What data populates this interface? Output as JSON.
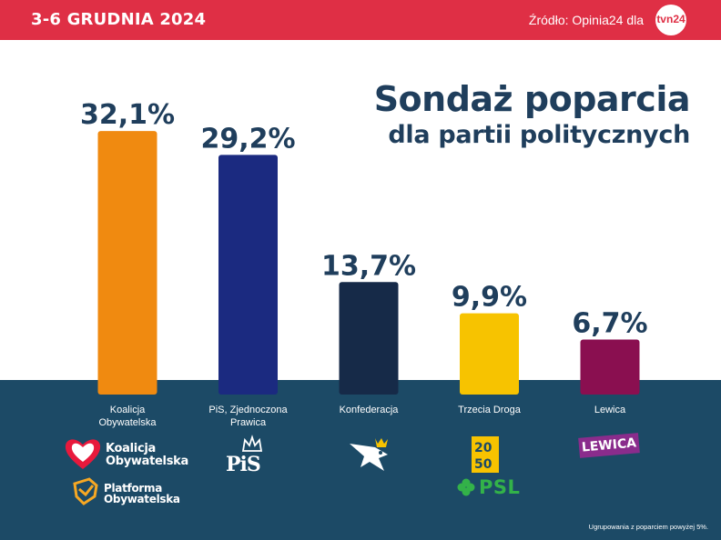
{
  "header": {
    "date_range": "3-6 GRUDNIA 2024",
    "source": "Źródło: Opinia24 dla",
    "logo_text": "tvn24"
  },
  "title": {
    "line1": "Sondaż poparcia",
    "line2": "dla partii politycznych"
  },
  "colors": {
    "header_bg": "#df2f45",
    "title": "#1f3e5c",
    "bottom_band": "#1c4a66"
  },
  "chart_data": {
    "type": "bar",
    "title": "Sondaż poparcia dla partii politycznych",
    "categories": [
      "Koalicja\nObywatelska",
      "PiS, Zjednoczona\nPrawica",
      "Konfederacja",
      "Trzecia Droga",
      "Lewica"
    ],
    "values": [
      32.1,
      29.2,
      13.7,
      9.9,
      6.7
    ],
    "value_labels": [
      "32,1%",
      "29,2%",
      "13,7%",
      "9,9%",
      "6,7%"
    ],
    "colors": [
      "#f08a10",
      "#1b2a80",
      "#162a48",
      "#f7c300",
      "#8a0f50"
    ],
    "unit": "%",
    "xlabel": "",
    "ylabel": "",
    "grid": false,
    "legend": "none"
  },
  "logos": {
    "ko": {
      "line1": "Koalicja",
      "line2": "Obywatelska"
    },
    "po": {
      "line1": "Platforma",
      "line2": "Obywatelska"
    },
    "pis": "PiS",
    "psl": "PSL",
    "lewica": "LEWICA"
  },
  "footnote": "Ugrupowania z poparciem powyżej 5%."
}
